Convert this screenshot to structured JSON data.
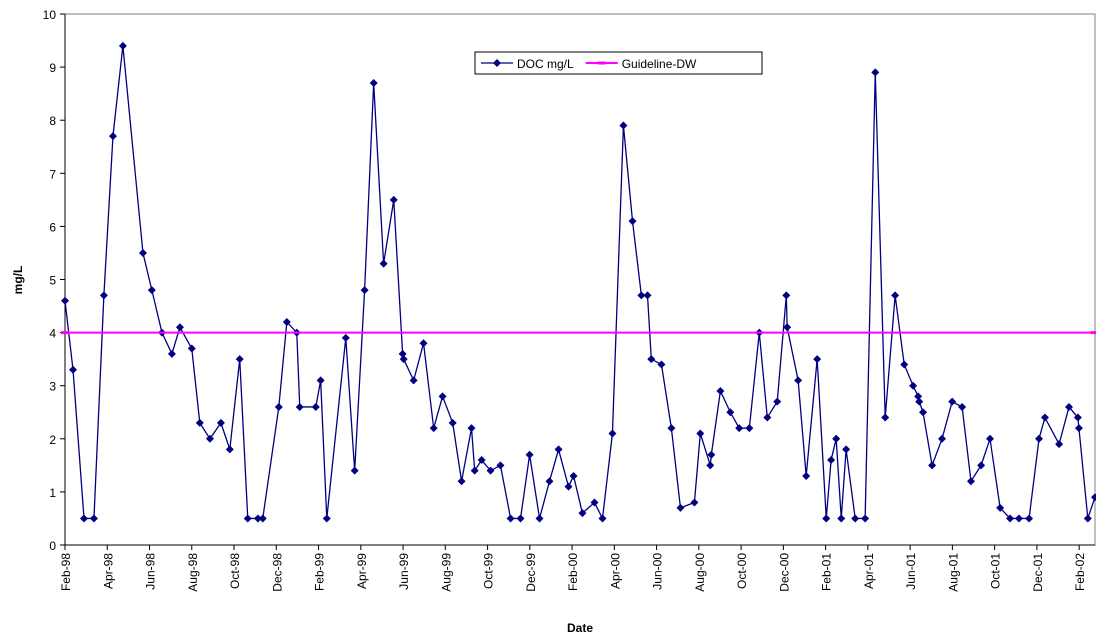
{
  "chart_data": {
    "type": "line",
    "xlabel": "Date",
    "ylabel": "mg/L",
    "xlim": [
      0,
      48.75
    ],
    "xticks": [
      {
        "value": 0,
        "label": "Feb-98"
      },
      {
        "value": 2,
        "label": "Apr-98"
      },
      {
        "value": 4,
        "label": "Jun-98"
      },
      {
        "value": 6,
        "label": "Aug-98"
      },
      {
        "value": 8,
        "label": "Oct-98"
      },
      {
        "value": 10,
        "label": "Dec-98"
      },
      {
        "value": 12,
        "label": "Feb-99"
      },
      {
        "value": 14,
        "label": "Apr-99"
      },
      {
        "value": 16,
        "label": "Jun-99"
      },
      {
        "value": 18,
        "label": "Aug-99"
      },
      {
        "value": 20,
        "label": "Oct-99"
      },
      {
        "value": 22,
        "label": "Dec-99"
      },
      {
        "value": 24,
        "label": "Feb-00"
      },
      {
        "value": 26,
        "label": "Apr-00"
      },
      {
        "value": 28,
        "label": "Jun-00"
      },
      {
        "value": 30,
        "label": "Aug-00"
      },
      {
        "value": 32,
        "label": "Oct-00"
      },
      {
        "value": 34,
        "label": "Dec-00"
      },
      {
        "value": 36,
        "label": "Feb-01"
      },
      {
        "value": 38,
        "label": "Apr-01"
      },
      {
        "value": 40,
        "label": "Jun-01"
      },
      {
        "value": 42,
        "label": "Aug-01"
      },
      {
        "value": 44,
        "label": "Oct-01"
      },
      {
        "value": 46,
        "label": "Dec-01"
      },
      {
        "value": 48,
        "label": "Feb-02"
      }
    ],
    "ylim": [
      0,
      10
    ],
    "yticks": [
      0,
      1,
      2,
      3,
      4,
      5,
      6,
      7,
      8,
      9,
      10
    ],
    "legend": "top-center",
    "series": [
      {
        "name": "DOC mg/L",
        "color": "#000080",
        "marker": "diamond",
        "x": [
          0,
          0.38,
          0.9,
          1.37,
          1.84,
          2.27,
          2.74,
          3.69,
          4.11,
          4.59,
          5.06,
          5.44,
          6.0,
          6.38,
          6.86,
          7.38,
          7.8,
          8.27,
          8.65,
          9.13,
          9.36,
          10.12,
          10.5,
          10.97,
          11.11,
          11.87,
          12.1,
          12.39,
          13.29,
          13.71,
          14.18,
          14.61,
          15.08,
          15.56,
          15.98,
          16.03,
          16.5,
          16.97,
          17.45,
          17.87,
          18.35,
          18.77,
          19.24,
          19.39,
          19.72,
          20.14,
          20.61,
          21.09,
          21.56,
          21.99,
          22.46,
          22.93,
          23.36,
          23.83,
          24.07,
          24.49,
          25.06,
          25.44,
          25.91,
          26.43,
          26.86,
          27.28,
          27.57,
          27.75,
          28.23,
          28.7,
          29.13,
          29.79,
          30.07,
          30.54,
          30.59,
          31.02,
          31.49,
          31.91,
          32.39,
          32.86,
          33.24,
          33.71,
          34.14,
          34.18,
          34.7,
          35.08,
          35.6,
          36.03,
          36.26,
          36.5,
          36.74,
          36.97,
          37.4,
          37.87,
          38.35,
          38.82,
          39.29,
          39.72,
          40.14,
          40.38,
          40.43,
          40.61,
          41.04,
          41.51,
          41.99,
          42.46,
          42.88,
          43.36,
          43.78,
          44.26,
          44.73,
          45.15,
          45.63,
          46.1,
          46.38,
          47.05,
          47.52,
          47.94,
          47.99,
          48.41,
          48.75
        ],
        "values": [
          4.6,
          3.3,
          0.5,
          0.5,
          4.7,
          7.7,
          9.4,
          5.5,
          4.8,
          4.0,
          3.6,
          4.1,
          3.7,
          2.3,
          2.0,
          2.3,
          1.8,
          3.5,
          0.5,
          0.5,
          0.5,
          2.6,
          4.2,
          4.0,
          2.6,
          2.6,
          3.1,
          0.5,
          3.9,
          1.4,
          4.8,
          8.7,
          5.3,
          6.5,
          3.6,
          3.5,
          3.1,
          3.8,
          2.2,
          2.8,
          2.3,
          1.2,
          2.2,
          1.4,
          1.6,
          1.4,
          1.5,
          0.5,
          0.5,
          1.7,
          0.5,
          1.2,
          1.8,
          1.1,
          1.3,
          0.6,
          0.8,
          0.5,
          2.1,
          7.9,
          6.1,
          4.7,
          4.7,
          3.5,
          3.4,
          2.2,
          0.7,
          0.8,
          2.1,
          1.5,
          1.7,
          2.9,
          2.5,
          2.2,
          2.2,
          4.0,
          2.4,
          2.7,
          4.7,
          4.1,
          3.1,
          1.3,
          3.5,
          0.5,
          1.6,
          2.0,
          0.5,
          1.8,
          0.5,
          0.5,
          8.9,
          2.4,
          4.7,
          3.4,
          3.0,
          2.8,
          2.7,
          2.5,
          1.5,
          2.0,
          2.7,
          2.6,
          1.2,
          1.5,
          2.0,
          0.7,
          0.5,
          0.5,
          0.5,
          2.0,
          2.4,
          1.9,
          2.6,
          2.4,
          2.2,
          0.5,
          0.9
        ]
      },
      {
        "name": "Guideline-DW",
        "color": "#ff00ff",
        "marker": "dash",
        "x": [
          0,
          48.75
        ],
        "values": [
          4,
          4
        ]
      }
    ]
  }
}
